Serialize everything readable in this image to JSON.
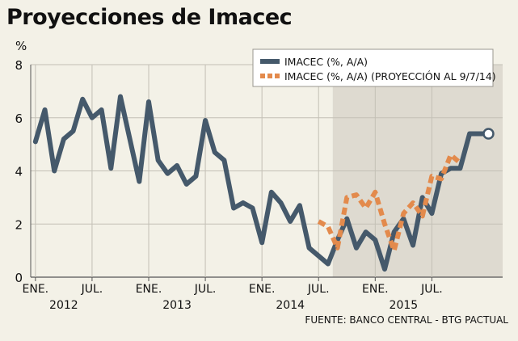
{
  "title": "Proyecciones de Imacec",
  "source": "FUENTE: BANCO CENTRAL - BTG PACTUAL",
  "colors": {
    "background": "#f3f1e7",
    "shaded": "#dedad0",
    "grid": "#c3c0b6",
    "actual": "#45596b",
    "projection": "#e38a4c"
  },
  "chart_data": {
    "type": "line",
    "title": "Proyecciones de Imacec",
    "ylabel": "%",
    "xlabel": "",
    "ylim": [
      0,
      8
    ],
    "y_ticks": [
      "0",
      "2",
      "4",
      "6",
      "8"
    ],
    "grid": true,
    "legend_position": "top-right",
    "x_tick_labels": [
      "ENE.",
      "JUL.",
      "ENE.",
      "JUL.",
      "ENE.",
      "JUL.",
      "ENE.",
      "JUL."
    ],
    "x_tick_months": [
      0,
      6,
      12,
      18,
      24,
      30,
      36,
      42
    ],
    "year_labels": [
      "2012",
      "2013",
      "2014",
      "2015"
    ],
    "year_label_months": [
      3,
      15,
      27,
      39
    ],
    "x_range_months": [
      -0.5,
      49.5
    ],
    "shaded_region_months": [
      31.5,
      49.5
    ],
    "series": [
      {
        "name": "IMACEC (%, A/A)",
        "style": "solid",
        "x_months": [
          0,
          1,
          2,
          3,
          4,
          5,
          6,
          7,
          8,
          9,
          10,
          11,
          12,
          13,
          14,
          15,
          16,
          17,
          18,
          19,
          20,
          21,
          22,
          23,
          24,
          25,
          26,
          27,
          28,
          29,
          30,
          31,
          32,
          33,
          34,
          35,
          36,
          37,
          38,
          39,
          40,
          41,
          42,
          43,
          44,
          45,
          46,
          47,
          48
        ],
        "values": [
          5.1,
          6.3,
          4.0,
          5.2,
          5.5,
          6.7,
          6.0,
          6.3,
          4.1,
          6.8,
          5.2,
          3.6,
          6.6,
          4.4,
          3.9,
          4.2,
          3.5,
          3.8,
          5.9,
          4.7,
          4.4,
          2.6,
          2.8,
          2.6,
          1.3,
          3.2,
          2.8,
          2.1,
          2.7,
          1.1,
          0.8,
          0.5,
          1.4,
          2.2,
          1.1,
          1.7,
          1.4,
          0.3,
          1.7,
          2.2,
          1.2,
          3.0,
          2.4,
          3.9,
          4.1,
          4.1,
          5.4,
          5.4,
          5.4
        ]
      },
      {
        "name": "IMACEC (%, A/A) (PROYECCIÓN AL 9/7/14)",
        "style": "dashed",
        "x_months": [
          30,
          31,
          32,
          33,
          34,
          35,
          36,
          37,
          38,
          39,
          40,
          41,
          42,
          43,
          44,
          45
        ],
        "values": [
          2.1,
          1.9,
          1.1,
          3.0,
          3.1,
          2.6,
          3.2,
          2.0,
          1.0,
          2.4,
          2.8,
          2.3,
          3.8,
          3.7,
          4.6,
          4.3
        ]
      }
    ]
  }
}
